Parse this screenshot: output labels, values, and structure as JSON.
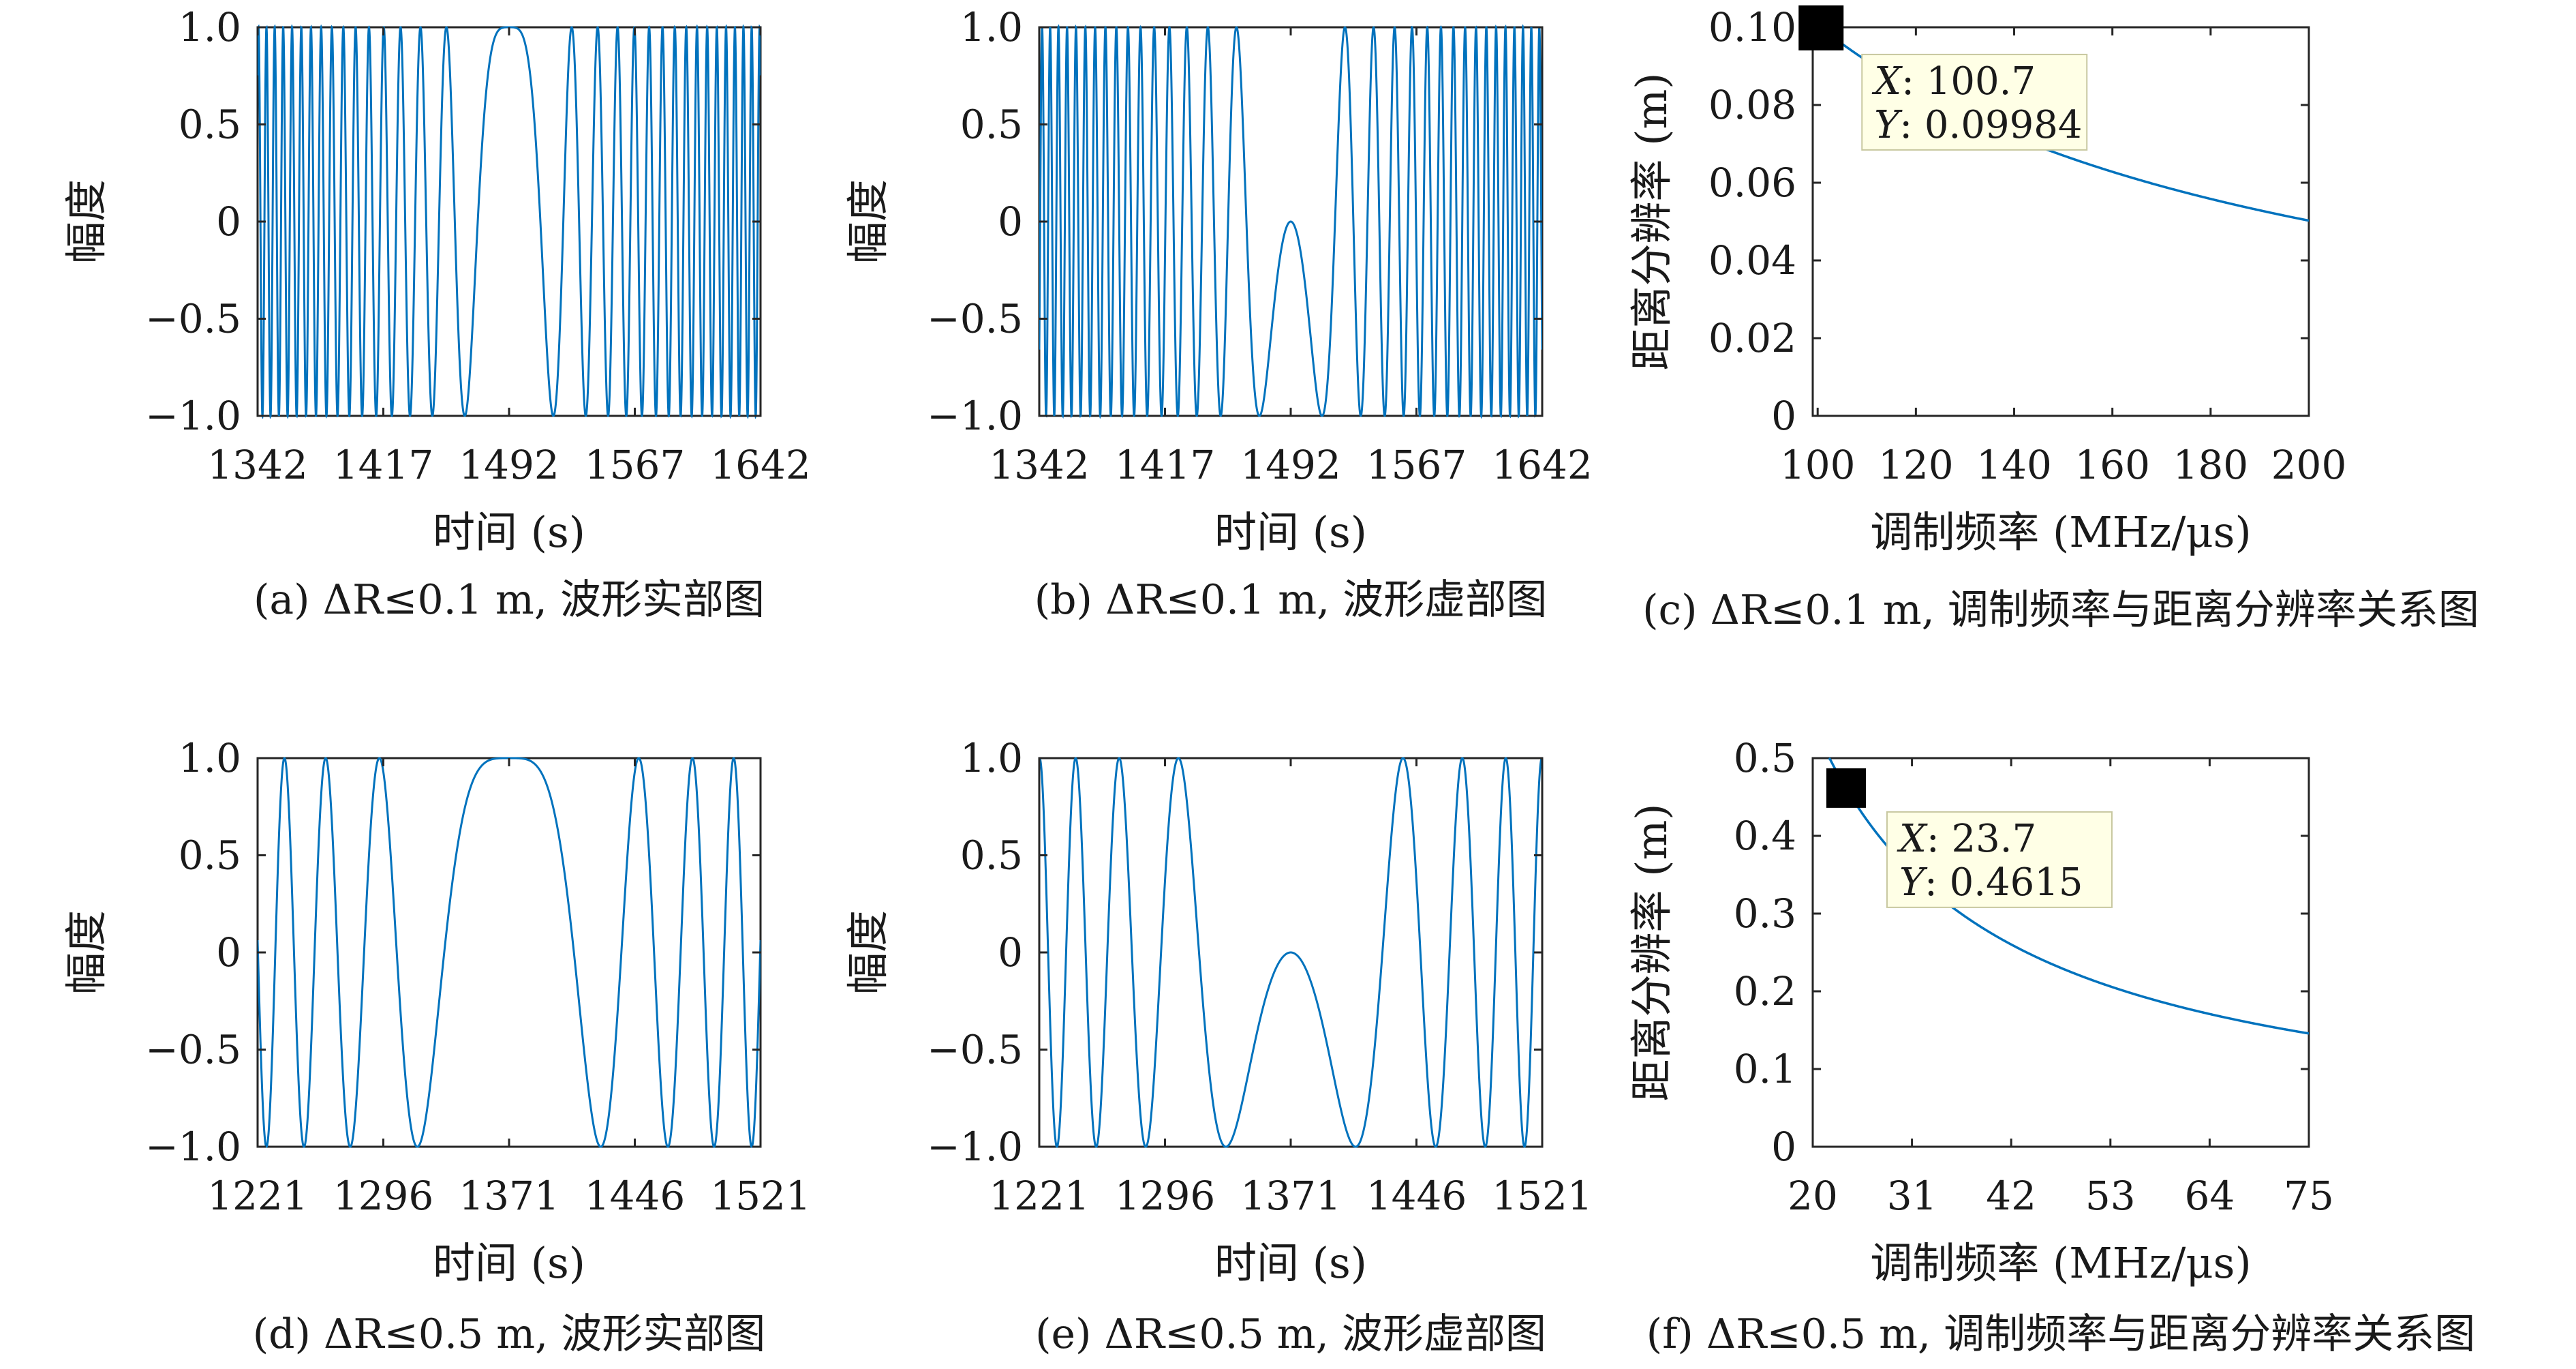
{
  "chart_data": [
    {
      "id": "a",
      "type": "line",
      "caption": "(a) ΔR≤0.1 m, 波形实部图",
      "xlabel": "时间 (s)",
      "ylabel": "幅度",
      "xlim": [
        1342,
        1642
      ],
      "ylim": [
        -1.0,
        1.0
      ],
      "xticks": [
        1342,
        1417,
        1492,
        1567,
        1642
      ],
      "xtick_labels": [
        "1342",
        "1417",
        "1492",
        "1567",
        "1642"
      ],
      "yticks": [
        1.0,
        0.5,
        0,
        -0.5,
        -1.0
      ],
      "ytick_labels": [
        "1.0",
        "0.5",
        "0",
        "−0.5",
        "−1.0"
      ],
      "series": [
        {
          "function": "cos",
          "center": 1492,
          "rate": 0.0045,
          "phase": 0,
          "color": "#0072BD"
        }
      ]
    },
    {
      "id": "b",
      "type": "line",
      "caption": "(b) ΔR≤0.1 m, 波形虚部图",
      "xlabel": "时间 (s)",
      "ylabel": "幅度",
      "xlim": [
        1342,
        1642
      ],
      "ylim": [
        -1.0,
        1.0
      ],
      "xticks": [
        1342,
        1417,
        1492,
        1567,
        1642
      ],
      "xtick_labels": [
        "1342",
        "1417",
        "1492",
        "1567",
        "1642"
      ],
      "yticks": [
        1.0,
        0.5,
        0,
        -0.5,
        -1.0
      ],
      "ytick_labels": [
        "1.0",
        "0.5",
        "0",
        "−0.5",
        "−1.0"
      ],
      "series": [
        {
          "function": "sin",
          "center": 1492,
          "rate": 0.0045,
          "phase": 1.5708,
          "color": "#0072BD"
        }
      ]
    },
    {
      "id": "c",
      "type": "line",
      "caption": "(c) ΔR≤0.1 m, 调制频率与距离分辨率关系图",
      "xlabel": "调制频率  (MHz/μs)",
      "ylabel": "距离分辨率 (m)",
      "xlim": [
        99,
        200
      ],
      "ylim": [
        0,
        0.1
      ],
      "xticks": [
        100,
        120,
        140,
        160,
        180,
        200
      ],
      "xtick_labels": [
        "100",
        "120",
        "140",
        "160",
        "180",
        "200"
      ],
      "yticks": [
        0.1,
        0.08,
        0.06,
        0.04,
        0.02,
        0
      ],
      "ytick_labels": [
        "0.10",
        "0.08",
        "0.06",
        "0.04",
        "0.02",
        "0"
      ],
      "series": [
        {
          "function": "k/x",
          "k": 10.05,
          "x_from": 99,
          "x_to": 200,
          "color": "#0072BD"
        }
      ],
      "datatip": {
        "x": 100.7,
        "y": 0.09984,
        "x_label": "X",
        "y_label": "Y",
        "x_text": ": 100.7",
        "y_text": ": 0.09984"
      }
    },
    {
      "id": "d",
      "type": "line",
      "caption": "(d) ΔR≤0.5 m, 波形实部图",
      "xlabel": "时间 (s)",
      "ylabel": "幅度",
      "xlim": [
        1221,
        1521
      ],
      "ylim": [
        -1.0,
        1.0
      ],
      "xticks": [
        1221,
        1296,
        1371,
        1446,
        1521
      ],
      "xtick_labels": [
        "1221",
        "1296",
        "1371",
        "1446",
        "1521"
      ],
      "yticks": [
        1.0,
        0.5,
        0,
        -0.5,
        -1.0
      ],
      "ytick_labels": [
        "1.0",
        "0.5",
        "0",
        "−0.5",
        "−1.0"
      ],
      "series": [
        {
          "function": "cos",
          "center": 1371,
          "rate": 0.00105,
          "phase": 0,
          "color": "#0072BD"
        }
      ]
    },
    {
      "id": "e",
      "type": "line",
      "caption": "(e) ΔR≤0.5 m, 波形虚部图",
      "xlabel": "时间 (s)",
      "ylabel": "幅度",
      "xlim": [
        1221,
        1521
      ],
      "ylim": [
        -1.0,
        1.0
      ],
      "xticks": [
        1221,
        1296,
        1371,
        1446,
        1521
      ],
      "xtick_labels": [
        "1221",
        "1296",
        "1371",
        "1446",
        "1521"
      ],
      "yticks": [
        1.0,
        0.5,
        0,
        -0.5,
        -1.0
      ],
      "ytick_labels": [
        "1.0",
        "0.5",
        "0",
        "−0.5",
        "−1.0"
      ],
      "series": [
        {
          "function": "sin",
          "center": 1371,
          "rate": 0.00105,
          "phase": 1.5708,
          "color": "#0072BD"
        }
      ]
    },
    {
      "id": "f",
      "type": "line",
      "caption": "(f) ΔR≤0.5 m, 调制频率与距离分辨率关系图",
      "xlabel": "调制频率  (MHz/μs)",
      "ylabel": "距离分辨率 (m)",
      "xlim": [
        20,
        75
      ],
      "ylim": [
        0,
        0.5
      ],
      "xticks": [
        20,
        31,
        42,
        53,
        64,
        75
      ],
      "xtick_labels": [
        "20",
        "31",
        "42",
        "53",
        "64",
        "75"
      ],
      "yticks": [
        0.5,
        0.4,
        0.3,
        0.2,
        0.1,
        0
      ],
      "ytick_labels": [
        "0.5",
        "0.4",
        "0.3",
        "0.2",
        "0.1",
        "0"
      ],
      "series": [
        {
          "function": "k/x",
          "k": 10.93,
          "x_from": 21.8,
          "x_to": 75,
          "color": "#0072BD"
        }
      ],
      "datatip": {
        "x": 23.7,
        "y": 0.4615,
        "x_label": "X",
        "y_label": "Y",
        "x_text": ": 23.7",
        "y_text": ": 0.4615"
      }
    }
  ]
}
